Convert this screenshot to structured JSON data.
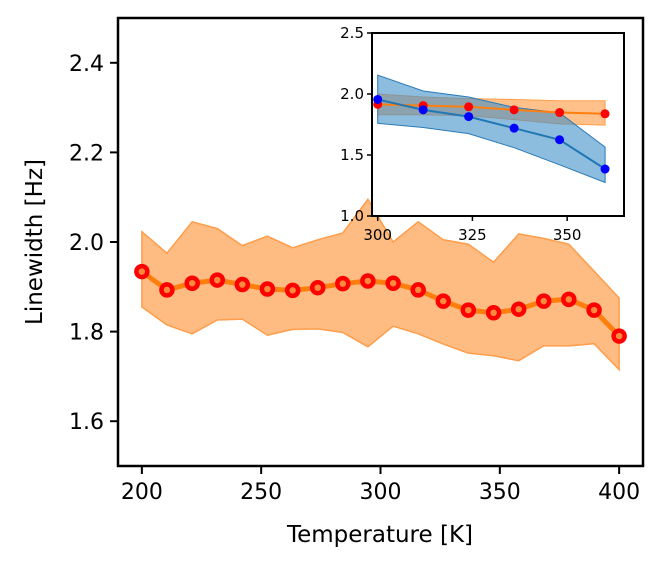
{
  "chart_data": [
    {
      "type": "line",
      "role": "main",
      "xlabel": "Temperature [K]",
      "ylabel": "Linewidth [Hz]",
      "xlim": [
        190,
        410
      ],
      "ylim": [
        1.5,
        2.5
      ],
      "xticks": [
        200,
        250,
        300,
        350,
        400
      ],
      "yticks": [
        1.6,
        1.8,
        2.0,
        2.2,
        2.4
      ],
      "xtick_labels": [
        "200",
        "250",
        "300",
        "350",
        "400"
      ],
      "ytick_labels": [
        "1.6",
        "1.8",
        "2.0",
        "2.2",
        "2.4"
      ],
      "colors": {
        "line": "#ff7f0e",
        "band": "#ffb06c",
        "marker": "#ff0000"
      },
      "series": [
        {
          "name": "linewidth",
          "x": [
            200,
            210.5,
            221.1,
            231.6,
            242.1,
            252.6,
            263.2,
            273.7,
            284.2,
            294.7,
            305.3,
            315.8,
            326.3,
            336.8,
            347.4,
            357.9,
            368.4,
            378.9,
            389.5,
            400
          ],
          "y": [
            1.934,
            1.893,
            1.908,
            1.915,
            1.905,
            1.895,
            1.892,
            1.898,
            1.907,
            1.913,
            1.908,
            1.893,
            1.868,
            1.848,
            1.842,
            1.85,
            1.868,
            1.872,
            1.848,
            1.79
          ],
          "upper": [
            2.023,
            1.975,
            2.045,
            2.03,
            1.992,
            2.013,
            1.987,
            2.005,
            2.02,
            2.095,
            2.0,
            2.045,
            2.005,
            1.995,
            1.955,
            2.018,
            2.008,
            1.995,
            1.935,
            1.875
          ],
          "lower": [
            1.855,
            1.815,
            1.795,
            1.826,
            1.828,
            1.792,
            1.805,
            1.806,
            1.798,
            1.766,
            1.812,
            1.795,
            1.772,
            1.752,
            1.746,
            1.735,
            1.768,
            1.768,
            1.773,
            1.715
          ]
        }
      ]
    },
    {
      "type": "line",
      "role": "inset",
      "xlim": [
        298.5,
        365
      ],
      "ylim": [
        1.0,
        2.5
      ],
      "xticks": [
        300,
        325,
        350
      ],
      "yticks": [
        1.0,
        1.5,
        2.0,
        2.5
      ],
      "xtick_labels": [
        "300",
        "325",
        "350"
      ],
      "ytick_labels": [
        "1.0",
        "1.5",
        "2.0",
        "2.5"
      ],
      "series": [
        {
          "name": "orange",
          "color": "#ff7f0e",
          "band_color": "#ffb06c",
          "marker_color": "#ff0000",
          "x": [
            300,
            312,
            324,
            336,
            348,
            360
          ],
          "y": [
            1.915,
            1.905,
            1.895,
            1.87,
            1.848,
            1.838
          ],
          "upper": [
            2.0,
            1.975,
            1.962,
            1.955,
            1.945,
            1.945
          ],
          "lower": [
            1.83,
            1.83,
            1.822,
            1.79,
            1.755,
            1.745
          ]
        },
        {
          "name": "blue",
          "color": "#1f77b4",
          "band_color": "#3f8fc8",
          "marker_color": "#0000ff",
          "x": [
            300,
            312,
            324,
            336,
            348,
            360
          ],
          "y": [
            1.955,
            1.87,
            1.815,
            1.72,
            1.625,
            1.385
          ],
          "upper": [
            2.155,
            2.025,
            1.975,
            1.89,
            1.845,
            1.565
          ],
          "lower": [
            1.76,
            1.725,
            1.675,
            1.56,
            1.42,
            1.275
          ]
        }
      ]
    }
  ]
}
